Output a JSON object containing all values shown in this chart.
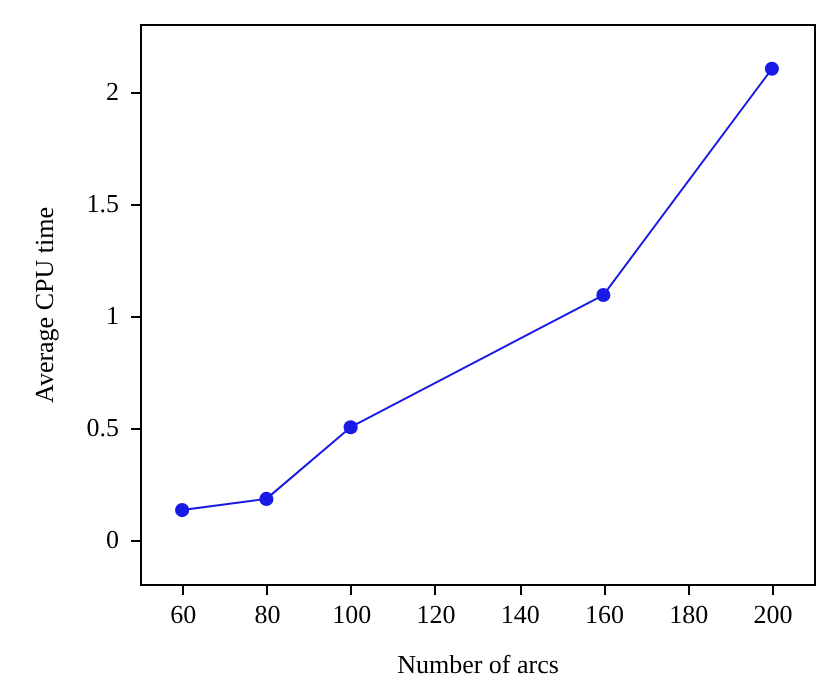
{
  "chart_data": {
    "type": "line",
    "xlabel": "Number of arcs",
    "ylabel": "Average CPU time",
    "x": [
      60,
      80,
      100,
      160,
      200
    ],
    "series": [
      {
        "color": "#1a1ae6",
        "values": [
          0.13,
          0.18,
          0.5,
          1.09,
          2.1
        ]
      }
    ],
    "xlim": [
      50,
      210
    ],
    "xticks": [
      60,
      80,
      100,
      120,
      140,
      160,
      180,
      200
    ],
    "ylim": [
      -0.2,
      2.3
    ],
    "yticks": [
      0,
      0.5,
      1,
      1.5,
      2
    ],
    "marker": "circle",
    "line_style": "solid",
    "grid": false
  }
}
